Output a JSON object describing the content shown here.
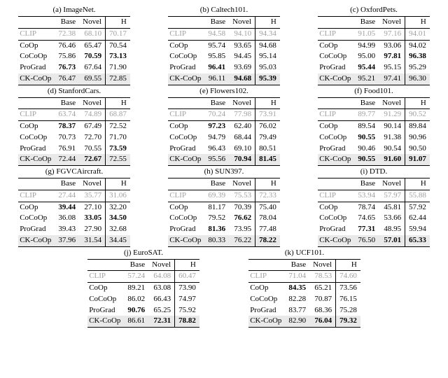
{
  "headers": {
    "m": "",
    "base": "Base",
    "novel": "Novel",
    "h": "H"
  },
  "methods": {
    "clip": "CLIP",
    "coop": "CoOp",
    "cocoop": "CoCoOp",
    "prograd": "ProGrad",
    "ckcoop": "CK-CoOp"
  },
  "panels": [
    {
      "id": "a",
      "caption": "(a) ImageNet.",
      "clip": {
        "base": "72.38",
        "novel": "68.10",
        "h": "70.17"
      },
      "rows": [
        {
          "m": "coop",
          "base": "76.46",
          "novel": "65.47",
          "h": "70.54",
          "bold": {}
        },
        {
          "m": "cocoop",
          "base": "75.86",
          "novel": "70.59",
          "h": "73.13",
          "bold": {
            "novel": true,
            "h": true
          }
        },
        {
          "m": "prograd",
          "base": "76.73",
          "novel": "67.64",
          "h": "71.90",
          "bold": {
            "base": true
          }
        },
        {
          "m": "ckcoop",
          "base": "76.47",
          "novel": "69.55",
          "h": "72.85",
          "hl": true,
          "bold": {}
        }
      ]
    },
    {
      "id": "b",
      "caption": "(b) Caltech101.",
      "clip": {
        "base": "94.58",
        "novel": "94.10",
        "h": "94.34"
      },
      "rows": [
        {
          "m": "coop",
          "base": "95.74",
          "novel": "93.65",
          "h": "94.68",
          "bold": {}
        },
        {
          "m": "cocoop",
          "base": "95.85",
          "novel": "94.45",
          "h": "95.14",
          "bold": {}
        },
        {
          "m": "prograd",
          "base": "96.41",
          "novel": "93.69",
          "h": "95.03",
          "bold": {
            "base": true
          }
        },
        {
          "m": "ckcoop",
          "base": "96.11",
          "novel": "94.68",
          "h": "95.39",
          "hl": true,
          "bold": {
            "novel": true,
            "h": true
          }
        }
      ]
    },
    {
      "id": "c",
      "caption": "(c) OxfordPets.",
      "clip": {
        "base": "91.05",
        "novel": "97.16",
        "h": "94.01"
      },
      "rows": [
        {
          "m": "coop",
          "base": "94.99",
          "novel": "93.06",
          "h": "94.02",
          "bold": {}
        },
        {
          "m": "cocoop",
          "base": "95.00",
          "novel": "97.81",
          "h": "96.38",
          "bold": {
            "novel": true,
            "h": true
          }
        },
        {
          "m": "prograd",
          "base": "95.44",
          "novel": "95.15",
          "h": "95.29",
          "bold": {
            "base": true
          }
        },
        {
          "m": "ckcoop",
          "base": "95.21",
          "novel": "97.41",
          "h": "96.30",
          "hl": true,
          "bold": {}
        }
      ]
    },
    {
      "id": "d",
      "caption": "(d) StanfordCars.",
      "clip": {
        "base": "63.74",
        "novel": "74.89",
        "h": "68.87"
      },
      "rows": [
        {
          "m": "coop",
          "base": "78.37",
          "novel": "67.49",
          "h": "72.52",
          "bold": {
            "base": true
          }
        },
        {
          "m": "cocoop",
          "base": "70.73",
          "novel": "72.70",
          "h": "71.70",
          "bold": {}
        },
        {
          "m": "prograd",
          "base": "76.91",
          "novel": "70.55",
          "h": "73.59",
          "bold": {
            "h": true
          }
        },
        {
          "m": "ckcoop",
          "base": "72.44",
          "novel": "72.67",
          "h": "72.55",
          "hl": true,
          "bold": {
            "novel": true
          }
        }
      ]
    },
    {
      "id": "e",
      "caption": "(e) Flowers102.",
      "clip": {
        "base": "70.24",
        "novel": "77.98",
        "h": "73.91"
      },
      "rows": [
        {
          "m": "coop",
          "base": "97.23",
          "novel": "62.40",
          "h": "76.02",
          "bold": {
            "base": true
          }
        },
        {
          "m": "cocoop",
          "base": "94.79",
          "novel": "68.44",
          "h": "79.49",
          "bold": {}
        },
        {
          "m": "prograd",
          "base": "96.43",
          "novel": "69.10",
          "h": "80.51",
          "bold": {}
        },
        {
          "m": "ckcoop",
          "base": "95.56",
          "novel": "70.94",
          "h": "81.45",
          "hl": true,
          "bold": {
            "novel": true,
            "h": true
          }
        }
      ]
    },
    {
      "id": "f",
      "caption": "(f) Food101.",
      "clip": {
        "base": "89.77",
        "novel": "91.29",
        "h": "90.52"
      },
      "rows": [
        {
          "m": "coop",
          "base": "89.54",
          "novel": "90.14",
          "h": "89.84",
          "bold": {}
        },
        {
          "m": "cocoop",
          "base": "90.55",
          "novel": "91.38",
          "h": "90.96",
          "bold": {
            "base": true
          }
        },
        {
          "m": "prograd",
          "base": "90.46",
          "novel": "90.54",
          "h": "90.50",
          "bold": {}
        },
        {
          "m": "ckcoop",
          "base": "90.55",
          "novel": "91.60",
          "h": "91.07",
          "hl": true,
          "bold": {
            "base": true,
            "novel": true,
            "h": true
          }
        }
      ]
    },
    {
      "id": "g",
      "caption": "(g) FGVCAircraft.",
      "clip": {
        "base": "27.44",
        "novel": "35.77",
        "h": "31.06"
      },
      "rows": [
        {
          "m": "coop",
          "base": "39.44",
          "novel": "27.10",
          "h": "32.20",
          "bold": {
            "base": true
          }
        },
        {
          "m": "cocoop",
          "base": "36.08",
          "novel": "33.05",
          "h": "34.50",
          "bold": {
            "novel": true,
            "h": true
          }
        },
        {
          "m": "prograd",
          "base": "39.43",
          "novel": "27.90",
          "h": "32.68",
          "bold": {}
        },
        {
          "m": "ckcoop",
          "base": "37.96",
          "novel": "31.54",
          "h": "34.45",
          "hl": true,
          "bold": {}
        }
      ]
    },
    {
      "id": "h",
      "caption": "(h) SUN397.",
      "clip": {
        "base": "69.39",
        "novel": "75.53",
        "h": "72.33"
      },
      "rows": [
        {
          "m": "coop",
          "base": "81.17",
          "novel": "70.39",
          "h": "75.40",
          "bold": {}
        },
        {
          "m": "cocoop",
          "base": "79.52",
          "novel": "76.62",
          "h": "78.04",
          "bold": {
            "novel": true
          }
        },
        {
          "m": "prograd",
          "base": "81.36",
          "novel": "73.95",
          "h": "77.48",
          "bold": {
            "base": true
          }
        },
        {
          "m": "ckcoop",
          "base": "80.33",
          "novel": "76.22",
          "h": "78.22",
          "hl": true,
          "bold": {
            "h": true
          }
        }
      ]
    },
    {
      "id": "i",
      "caption": "(i) DTD.",
      "clip": {
        "base": "53.94",
        "novel": "57.97",
        "h": "55.88"
      },
      "rows": [
        {
          "m": "coop",
          "base": "78.74",
          "novel": "45.81",
          "h": "57.92",
          "bold": {}
        },
        {
          "m": "cocoop",
          "base": "74.65",
          "novel": "53.66",
          "h": "62.44",
          "bold": {}
        },
        {
          "m": "prograd",
          "base": "77.31",
          "novel": "48.95",
          "h": "59.94",
          "bold": {
            "base": true
          }
        },
        {
          "m": "ckcoop",
          "base": "76.50",
          "novel": "57.01",
          "h": "65.33",
          "hl": true,
          "bold": {
            "novel": true,
            "h": true
          }
        }
      ]
    },
    {
      "id": "j",
      "caption": "(j) EuroSAT.",
      "clip": {
        "base": "57.24",
        "novel": "64.08",
        "h": "60.47"
      },
      "rows": [
        {
          "m": "coop",
          "base": "89.21",
          "novel": "63.08",
          "h": "73.90",
          "bold": {}
        },
        {
          "m": "cocoop",
          "base": "86.02",
          "novel": "66.43",
          "h": "74.97",
          "bold": {}
        },
        {
          "m": "prograd",
          "base": "90.76",
          "novel": "65.25",
          "h": "75.92",
          "bold": {
            "base": true
          }
        },
        {
          "m": "ckcoop",
          "base": "86.61",
          "novel": "72.31",
          "h": "78.82",
          "hl": true,
          "bold": {
            "novel": true,
            "h": true
          }
        }
      ]
    },
    {
      "id": "k",
      "caption": "(k) UCF101.",
      "clip": {
        "base": "71.04",
        "novel": "78.53",
        "h": "74.60"
      },
      "rows": [
        {
          "m": "coop",
          "base": "84.35",
          "novel": "65.21",
          "h": "73.56",
          "bold": {
            "base": true
          }
        },
        {
          "m": "cocoop",
          "base": "82.28",
          "novel": "70.87",
          "h": "76.15",
          "bold": {}
        },
        {
          "m": "prograd",
          "base": "83.77",
          "novel": "68.36",
          "h": "75.28",
          "bold": {}
        },
        {
          "m": "ckcoop",
          "base": "82.90",
          "novel": "76.04",
          "h": "79.32",
          "hl": true,
          "bold": {
            "novel": true,
            "h": true
          }
        }
      ]
    }
  ],
  "colors": {
    "bg": "#ffffff",
    "text": "#000000",
    "muted": "#a0a0a0",
    "highlight": "#e9e9e9",
    "rule": "#000000"
  }
}
